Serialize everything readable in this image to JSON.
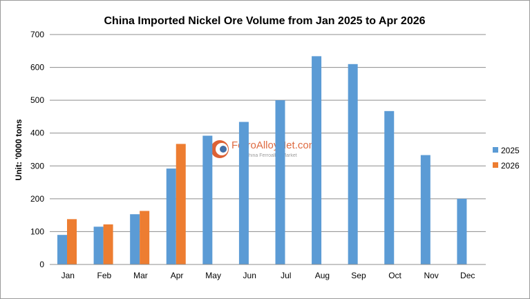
{
  "chart_data": {
    "type": "bar",
    "title": "China Imported Nickel Ore Volume from Jan 2025 to Apr 2026",
    "ylabel": "Unit: '0000 tons",
    "xlabel": "",
    "categories": [
      "Jan",
      "Feb",
      "Mar",
      "Apr",
      "May",
      "Jun",
      "Jul",
      "Aug",
      "Sep",
      "Oct",
      "Nov",
      "Dec"
    ],
    "series": [
      {
        "name": "2025",
        "color": "#5b9bd5",
        "values": [
          90,
          115,
          153,
          292,
          392,
          434,
          500,
          634,
          610,
          467,
          333,
          200
        ]
      },
      {
        "name": "2026",
        "color": "#ed7d31",
        "values": [
          138,
          122,
          163,
          367,
          null,
          null,
          null,
          null,
          null,
          null,
          null,
          null
        ]
      }
    ],
    "ylim": [
      0,
      700
    ],
    "yticks": [
      0,
      100,
      200,
      300,
      400,
      500,
      600,
      700
    ],
    "grid": true,
    "legend_position": "right"
  },
  "watermark": {
    "text": "FerroAlloyNet.com",
    "subtext": "China Ferroalloy Market",
    "brand_color": "#d9501e"
  },
  "colors": {
    "gridline": "#8c8c8c",
    "axis": "#8c8c8c",
    "frame_border": "#9a9a9a"
  }
}
